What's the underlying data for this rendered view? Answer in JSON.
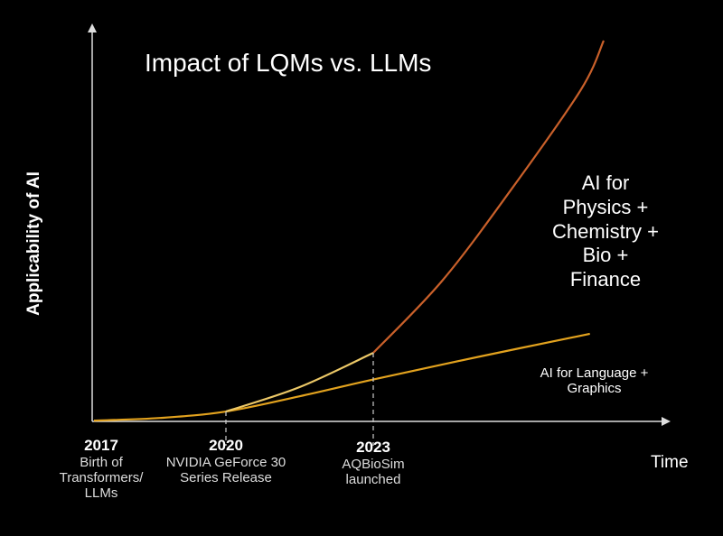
{
  "chart_data": {
    "type": "line",
    "title": "Impact of LQMs vs. LLMs",
    "xlabel": "Time",
    "ylabel": "Applicability of AI",
    "xlim": [
      2017,
      2028
    ],
    "ylim": [
      0,
      100
    ],
    "grid": false,
    "series": [
      {
        "name": "AI for Language + Graphics",
        "color": "#e2a21e",
        "points": [
          [
            2017,
            0.2
          ],
          [
            2018.5,
            0.9
          ],
          [
            2020,
            2.6
          ],
          [
            2021.5,
            6.6
          ],
          [
            2023,
            11
          ],
          [
            2025.3,
            17
          ],
          [
            2027.7,
            23
          ]
        ]
      },
      {
        "name": "AI for Physics + Chemistry + Bio + Finance (pre-2023)",
        "color": "#ecc867",
        "points": [
          [
            2020,
            2.6
          ],
          [
            2021.5,
            9
          ],
          [
            2023,
            18
          ]
        ]
      },
      {
        "name": "AI for Physics + Chemistry + Bio + Finance",
        "color": "#c9602a",
        "points": [
          [
            2023,
            18
          ],
          [
            2024.5,
            37
          ],
          [
            2026,
            61
          ],
          [
            2027.5,
            87
          ],
          [
            2028,
            100
          ]
        ]
      }
    ],
    "labels": {
      "lqm": [
        "AI for",
        "Physics +",
        "Chemistry +",
        "Bio +",
        "Finance"
      ],
      "llm": [
        "AI for Language +",
        "Graphics"
      ]
    },
    "annotations": [
      {
        "year": "2017",
        "text": [
          "Birth of",
          "Transformers/",
          "LLMs"
        ],
        "dashed": false
      },
      {
        "year": "2020",
        "text": [
          "NVIDIA GeForce 30",
          "Series Release"
        ],
        "dashed": true
      },
      {
        "year": "2023",
        "text": [
          "AQBioSim",
          "launched"
        ],
        "dashed": true
      }
    ]
  }
}
